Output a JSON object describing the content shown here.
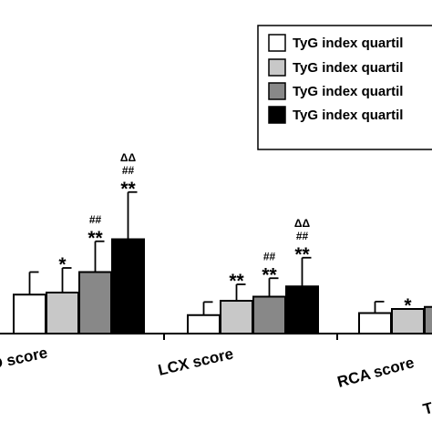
{
  "chart_data": {
    "type": "bar",
    "categories": [
      "D score",
      "LCX score",
      "RCA score",
      "T"
    ],
    "series": [
      {
        "name": "TyG index quartil",
        "color": "#ffffff",
        "values": [
          0.95,
          0.45,
          0.5,
          null
        ],
        "errors": [
          0.55,
          0.32,
          0.28,
          null
        ]
      },
      {
        "name": "TyG index quartil",
        "color": "#c8c8c8",
        "values": [
          1.0,
          0.8,
          0.6,
          null
        ],
        "errors": [
          0.6,
          0.4,
          null,
          null
        ]
      },
      {
        "name": "TyG index quartil",
        "color": "#888888",
        "values": [
          1.5,
          0.9,
          0.65,
          null
        ],
        "errors": [
          0.75,
          0.45,
          null,
          null
        ]
      },
      {
        "name": "TyG index quartil",
        "color": "#000000",
        "values": [
          2.3,
          1.15,
          null,
          null
        ],
        "errors": [
          1.15,
          0.7,
          null,
          null
        ]
      }
    ],
    "significance": [
      [
        "",
        "*",
        "##\n**",
        "ΔΔ\n##\n**"
      ],
      [
        "",
        "**",
        "##\n**",
        "ΔΔ\n##\n**"
      ],
      [
        "",
        "*",
        "",
        ""
      ],
      [
        "",
        "",
        "",
        ""
      ]
    ],
    "legend_position": "top-right",
    "ylim": [
      0,
      3.6
    ],
    "grid": false
  }
}
